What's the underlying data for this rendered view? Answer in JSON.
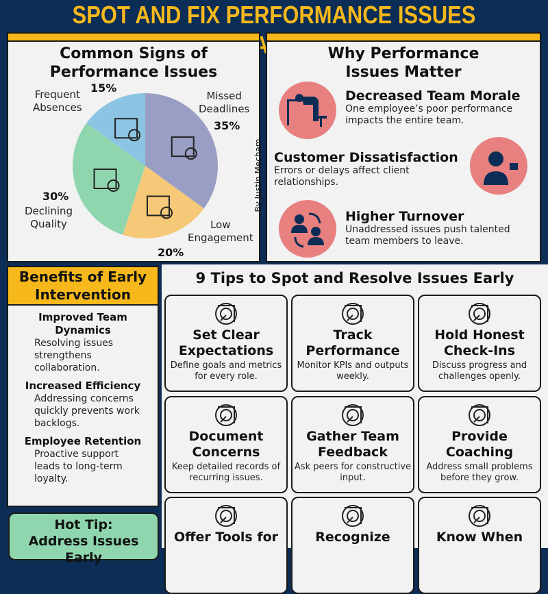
{
  "title": "SPOT AND FIX PERFORMANCE ISSUES EARLY",
  "colors": {
    "background": "#0c2d55",
    "accent": "#f6b81a",
    "why_circle": "#e88080",
    "hot_tip": "#8fd6ae"
  },
  "signs": {
    "title_line1": "Common Signs of",
    "title_line2": "Performance Issues",
    "credit": "By Justin Mecham",
    "chart_data": {
      "type": "pie",
      "slices": [
        {
          "label_line1": "Missed",
          "label_line2": "Deadlines",
          "value": 35,
          "value_label": "35%",
          "color": "#9a9ec4",
          "icon": "calendar-x-icon"
        },
        {
          "label_line1": "Low",
          "label_line2": "Engagement",
          "value": 20,
          "value_label": "20%",
          "color": "#f5c978",
          "icon": "tired-person-icon"
        },
        {
          "label_line1": "Declining",
          "label_line2": "Quality",
          "value": 30,
          "value_label": "30%",
          "color": "#8fd6ae",
          "icon": "declining-chart-icon"
        },
        {
          "label_line1": "Frequent",
          "label_line2": "Absences",
          "value": 15,
          "value_label": "15%",
          "color": "#8cc4e4",
          "icon": "user-x-icon"
        }
      ]
    }
  },
  "why": {
    "title_line1": "Why Performance",
    "title_line2": "Issues Matter",
    "items": [
      {
        "heading": "Decreased Team Morale",
        "text": "One employee’s poor performance impacts the entire team.",
        "icon": "exhausted-worker-icon"
      },
      {
        "heading": "Customer Dissatisfaction",
        "text": "Errors or delays affect client relationships.",
        "icon": "thumbs-down-customer-icon"
      },
      {
        "heading": "Higher Turnover",
        "text": "Unaddressed issues push talented team members to leave.",
        "icon": "people-exchange-icon"
      }
    ]
  },
  "benefits": {
    "title_line1": "Benefits of Early",
    "title_line2": "Intervention",
    "items": [
      {
        "heading": "Improved Team Dynamics",
        "text": "Resolving issues strengthens collaboration."
      },
      {
        "heading": "Increased Efficiency",
        "text": "Addressing concerns quickly prevents work backlogs."
      },
      {
        "heading": "Employee Retention",
        "text": "Proactive support leads to long-term loyalty."
      }
    ]
  },
  "hot_tip": {
    "line1": "Hot Tip:",
    "line2": "Address Issues Early"
  },
  "tips": {
    "title": "9 Tips to Spot and Resolve Issues Early",
    "items": [
      {
        "title": "Set Clear Expectations",
        "text": "Define goals and metrics for every role.",
        "icon": "target-icon"
      },
      {
        "title": "Track Performance",
        "text": "Monitor KPIs and outputs weekly.",
        "icon": "chart-magnifier-icon"
      },
      {
        "title": "Hold Honest Check-Ins",
        "text": "Discuss progress and challenges openly.",
        "icon": "meeting-icon"
      },
      {
        "title": "Document Concerns",
        "text": "Keep detailed records of recurring issues.",
        "icon": "document-search-icon"
      },
      {
        "title": "Gather Team Feedback",
        "text": "Ask peers for constructive input.",
        "icon": "lightbulb-feedback-icon"
      },
      {
        "title": "Provide Coaching",
        "text": "Address small problems before they grow.",
        "icon": "coaching-icon"
      },
      {
        "title": "Offer Tools for",
        "text": "",
        "icon": "presentation-icon"
      },
      {
        "title": "Recognize",
        "text": "",
        "icon": "trophy-hand-icon"
      },
      {
        "title": "Know When",
        "text": "",
        "icon": "hr-network-icon"
      }
    ]
  }
}
